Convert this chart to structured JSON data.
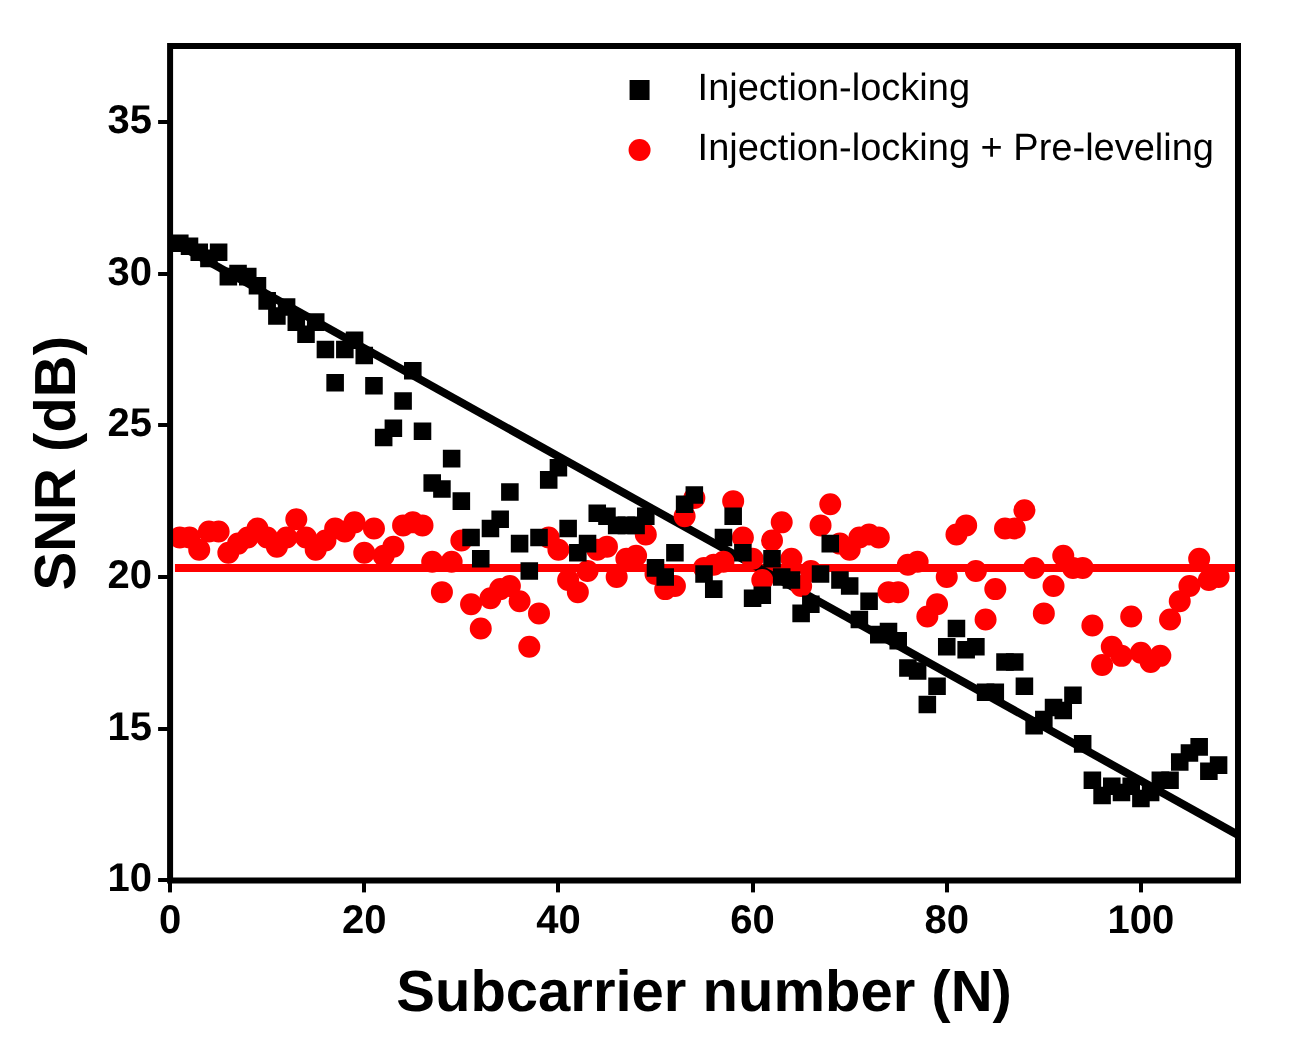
{
  "chart_data": {
    "type": "scatter",
    "xlabel": "Subcarrier number (N)",
    "ylabel": "SNR (dB)",
    "xlim": [
      0,
      110
    ],
    "xticks": [
      0,
      20,
      40,
      60,
      80,
      100
    ],
    "ylim": [
      10,
      37.5
    ],
    "yticks": [
      10,
      15,
      20,
      25,
      30,
      35
    ],
    "grid": false,
    "legend": "top right",
    "x": [
      1,
      2,
      3,
      4,
      5,
      6,
      7,
      8,
      9,
      10,
      11,
      12,
      13,
      14,
      15,
      16,
      17,
      18,
      19,
      20,
      21,
      22,
      23,
      24,
      25,
      26,
      27,
      28,
      29,
      30,
      31,
      32,
      33,
      34,
      35,
      36,
      37,
      38,
      39,
      40,
      41,
      42,
      43,
      44,
      45,
      46,
      47,
      48,
      49,
      50,
      51,
      52,
      53,
      54,
      55,
      56,
      57,
      58,
      59,
      60,
      61,
      62,
      63,
      64,
      65,
      66,
      67,
      68,
      69,
      70,
      71,
      72,
      73,
      74,
      75,
      76,
      77,
      78,
      79,
      80,
      81,
      82,
      83,
      84,
      85,
      86,
      87,
      88,
      89,
      90,
      91,
      92,
      93,
      94,
      95,
      96,
      97,
      98,
      99,
      100,
      101,
      102,
      103,
      104,
      105,
      106,
      107,
      108
    ],
    "series": [
      {
        "name": "Injection-locking",
        "color": "#000000",
        "marker": "square",
        "values": [
          31.0,
          30.9,
          30.7,
          30.5,
          30.7,
          29.9,
          30.0,
          29.9,
          29.6,
          29.1,
          28.6,
          28.9,
          28.4,
          28.0,
          28.4,
          27.5,
          26.4,
          27.5,
          27.8,
          27.3,
          26.3,
          24.6,
          24.9,
          25.8,
          26.8,
          24.8,
          23.1,
          22.9,
          23.9,
          22.5,
          21.3,
          20.6,
          21.6,
          21.9,
          22.8,
          21.1,
          20.2,
          21.3,
          23.2,
          23.6,
          21.6,
          20.8,
          21.1,
          22.1,
          22.0,
          21.7,
          21.7,
          21.7,
          22.0,
          20.3,
          20.0,
          20.8,
          22.4,
          22.7,
          20.1,
          19.6,
          21.3,
          22.0,
          20.8,
          19.3,
          19.4,
          20.6,
          20.0,
          19.9,
          18.8,
          19.1,
          20.1,
          21.1,
          19.9,
          19.7,
          18.6,
          19.2,
          18.1,
          18.2,
          17.9,
          17.0,
          16.9,
          15.8,
          16.4,
          17.7,
          18.3,
          17.6,
          17.7,
          16.2,
          16.2,
          17.2,
          17.2,
          16.4,
          15.1,
          15.3,
          15.7,
          15.6,
          16.1,
          14.5,
          13.3,
          12.8,
          13.1,
          12.9,
          13.1,
          12.7,
          12.9,
          13.3,
          13.3,
          13.9,
          14.2,
          14.4,
          13.6,
          13.8
        ]
      },
      {
        "name": "Injection-locking + Pre-leveling",
        "color": "#ff0000",
        "marker": "circle",
        "values": [
          21.3,
          21.3,
          20.9,
          21.5,
          21.5,
          20.8,
          21.1,
          21.3,
          21.6,
          21.3,
          21.0,
          21.3,
          21.9,
          21.3,
          20.9,
          21.2,
          21.6,
          21.5,
          21.8,
          20.8,
          21.6,
          20.7,
          21.0,
          21.7,
          21.8,
          21.7,
          20.5,
          19.5,
          20.5,
          21.2,
          19.1,
          18.3,
          19.3,
          19.6,
          19.7,
          19.2,
          17.7,
          18.8,
          21.3,
          20.9,
          19.9,
          19.5,
          20.2,
          20.9,
          21.0,
          20.0,
          20.6,
          20.7,
          21.4,
          20.1,
          19.6,
          19.7,
          22.0,
          22.6,
          20.3,
          20.4,
          20.5,
          22.5,
          21.3,
          20.6,
          19.9,
          21.2,
          21.8,
          20.6,
          19.7,
          20.2,
          21.7,
          22.4,
          21.1,
          20.9,
          21.3,
          21.4,
          21.3,
          19.5,
          19.5,
          20.4,
          20.5,
          18.7,
          19.1,
          20.0,
          21.4,
          21.7,
          20.2,
          18.6,
          19.6,
          21.6,
          21.6,
          22.2,
          20.3,
          18.8,
          19.7,
          20.7,
          20.3,
          20.3,
          18.4,
          17.1,
          17.7,
          17.4,
          18.7,
          17.5,
          17.2,
          17.4,
          18.6,
          19.2,
          19.7,
          20.6,
          19.9,
          20.0
        ]
      },
      {
        "type": "line",
        "color": "#000000",
        "marker": "none",
        "x": [
          0,
          110
        ],
        "values": [
          31.1,
          11.5
        ]
      },
      {
        "type": "line",
        "color": "#ff0000",
        "marker": "none",
        "x": [
          0.5,
          110
        ],
        "values": [
          20.3,
          20.3
        ]
      }
    ]
  }
}
